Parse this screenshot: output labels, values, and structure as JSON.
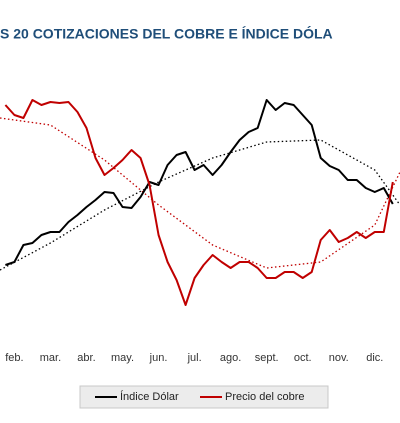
{
  "chart_data": {
    "type": "line",
    "title": "S 20 COTIZACIONES DEL COBRE E ÍNDICE DÓLA",
    "x": [
      1.75,
      2,
      2.25,
      2.5,
      2.75,
      3,
      3.25,
      3.5,
      3.75,
      4,
      4.25,
      4.5,
      4.75,
      5,
      5.25,
      5.5,
      5.75,
      6,
      6.25,
      6.5,
      6.75,
      7,
      7.25,
      7.5,
      7.75,
      8,
      8.25,
      8.5,
      8.75,
      9,
      9.25,
      9.5,
      9.75,
      10,
      10.25,
      10.5,
      10.75,
      11,
      11.25,
      11.5,
      11.75,
      12,
      12.25,
      12.5
    ],
    "xlim": [
      1.6,
      12.7
    ],
    "xticks": [
      {
        "value": 2,
        "label": "feb."
      },
      {
        "value": 3,
        "label": "mar."
      },
      {
        "value": 4,
        "label": "abr."
      },
      {
        "value": 5,
        "label": "may."
      },
      {
        "value": 6,
        "label": "jun."
      },
      {
        "value": 7,
        "label": "jul."
      },
      {
        "value": 8,
        "label": "ago."
      },
      {
        "value": 9,
        "label": "sept."
      },
      {
        "value": 10,
        "label": "oct."
      },
      {
        "value": 11,
        "label": "nov."
      },
      {
        "value": 12,
        "label": "dic."
      }
    ],
    "ylim": [
      0,
      100
    ],
    "series": [
      {
        "name": "Índice Dólar",
        "color": "#000000",
        "values": [
          26,
          27.2,
          34,
          34.8,
          38,
          39.2,
          39.2,
          43.2,
          46,
          49.2,
          52,
          55.2,
          54.8,
          49.2,
          48.8,
          53.2,
          59.2,
          58,
          66,
          70,
          71.2,
          64,
          66,
          62,
          66,
          71.2,
          76,
          79.2,
          80.8,
          92,
          88,
          90.8,
          90,
          86,
          82,
          68.8,
          65.6,
          64,
          60,
          60,
          56.8,
          55.2,
          56.8,
          50.4
        ],
        "trend_x": [
          1.6,
          3,
          4.5,
          6,
          7.5,
          9,
          10.5,
          12,
          12.7
        ],
        "trend_values": [
          24,
          34.8,
          48,
          59.2,
          68.8,
          75.2,
          76,
          64,
          50
        ]
      },
      {
        "name": "Precio del cobre",
        "color": "#c00000",
        "values": [
          90,
          86,
          84.8,
          92,
          90,
          91.2,
          90.8,
          91.2,
          87.2,
          80.8,
          68.8,
          62,
          64.8,
          68,
          72,
          68.8,
          58,
          38,
          27.2,
          20,
          10,
          20.8,
          26,
          30,
          27.2,
          24.8,
          27.2,
          27.2,
          24.8,
          20.8,
          20.8,
          23.2,
          23.2,
          20.8,
          23.2,
          36,
          40,
          35.2,
          36.8,
          39.2,
          36.8,
          39.2,
          39.2,
          59.2
        ],
        "trend_x": [
          1.6,
          3,
          4.5,
          6,
          7.5,
          9,
          10.5,
          12,
          12.7
        ],
        "trend_values": [
          84.8,
          82,
          68,
          50,
          34,
          24.8,
          27.2,
          42,
          63.2
        ]
      }
    ]
  }
}
